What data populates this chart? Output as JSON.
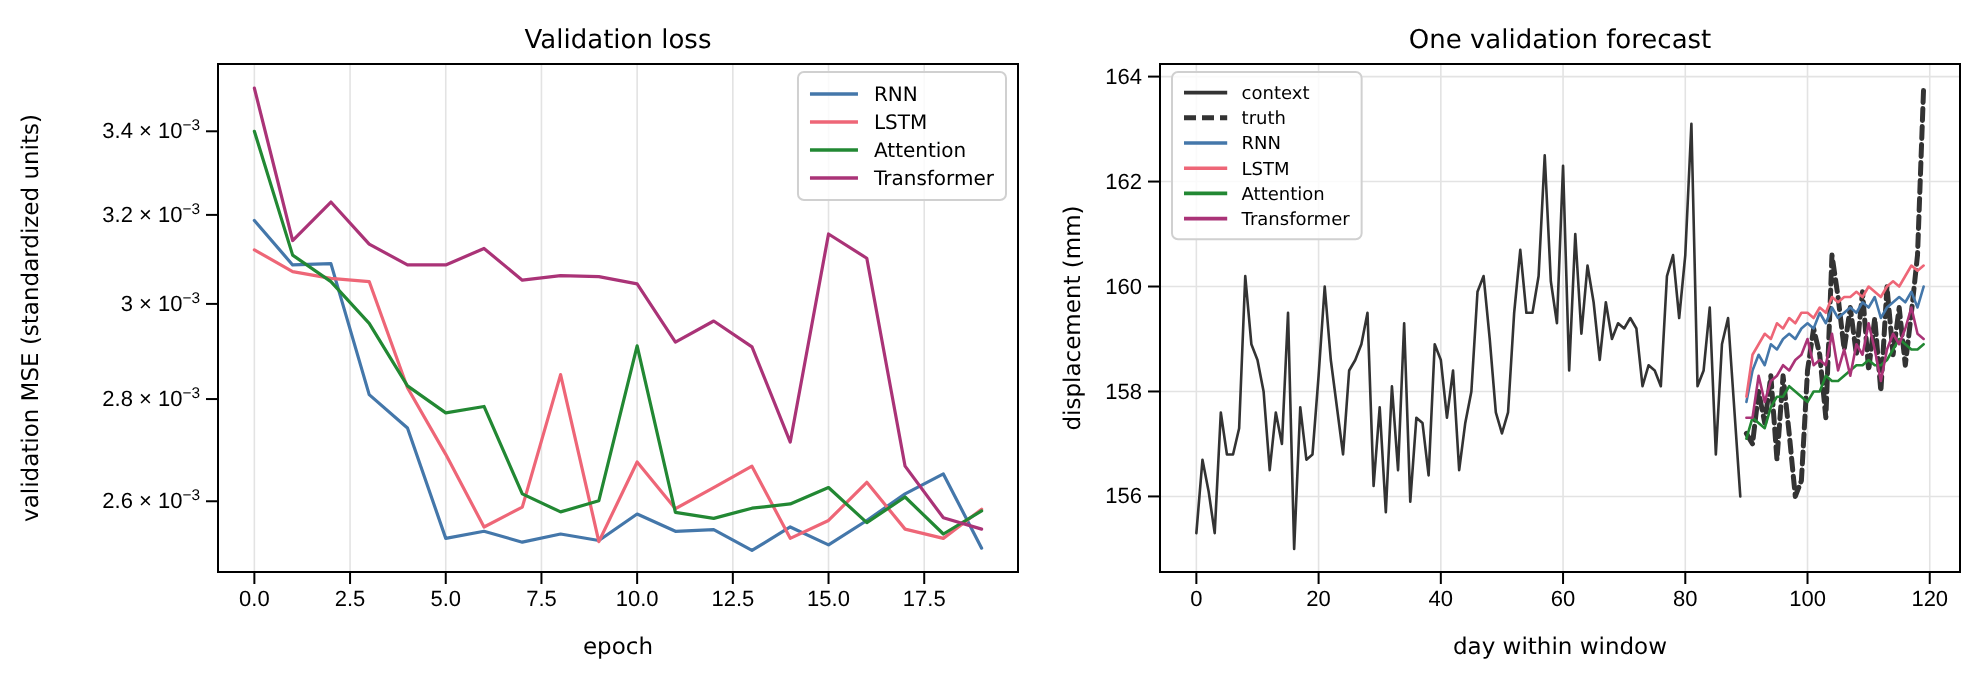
{
  "chart_data": [
    {
      "type": "line",
      "title": "Validation loss",
      "xlabel": "epoch",
      "ylabel": "validation MSE (standardized units)",
      "log": "y",
      "grid": "x",
      "legend": "top right",
      "marker": "none",
      "line_style": "solid",
      "xlim": [
        -0.95,
        19.95
      ],
      "xticks": [
        {
          "value": 0,
          "label": "0.0"
        },
        {
          "value": 2.5,
          "label": "2.5"
        },
        {
          "value": 5,
          "label": "5.0"
        },
        {
          "value": 7.5,
          "label": "7.5"
        },
        {
          "value": 10,
          "label": "10.0"
        },
        {
          "value": 12.5,
          "label": "12.5"
        },
        {
          "value": 15,
          "label": "15.0"
        },
        {
          "value": 17.5,
          "label": "17.5"
        }
      ],
      "ylim": [
        0.00247,
        0.00357
      ],
      "yticks": [
        {
          "value": 0.0026,
          "label": "2.6 × 10$^{−3}$"
        },
        {
          "value": 0.0028,
          "label": "2.8 × 10$^{−3}$"
        },
        {
          "value": 0.003,
          "label": "3 × 10$^{−3}$"
        },
        {
          "value": 0.0032,
          "label": "3.2 × 10$^{−3}$"
        },
        {
          "value": 0.0034,
          "label": "3.4 × 10$^{−3}$"
        }
      ],
      "x": [
        0,
        1,
        2,
        3,
        4,
        5,
        6,
        7,
        8,
        9,
        10,
        11,
        12,
        13,
        14,
        15,
        16,
        17,
        18,
        19
      ],
      "series": [
        {
          "name": "RNN",
          "color": "#4477aa",
          "values": [
            0.003187,
            0.003086,
            0.003089,
            0.002809,
            0.002742,
            0.002531,
            0.002544,
            0.002524,
            0.002539,
            0.002527,
            0.002576,
            0.002544,
            0.002547,
            0.002509,
            0.002552,
            0.002519,
            0.002564,
            0.002614,
            0.002652,
            0.002513
          ]
        },
        {
          "name": "LSTM",
          "color": "#ee6677",
          "values": [
            0.00312,
            0.003071,
            0.003056,
            0.003049,
            0.002823,
            0.00269,
            0.002552,
            0.002589,
            0.00285,
            0.002525,
            0.002675,
            0.002586,
            0.002626,
            0.002667,
            0.002531,
            0.002564,
            0.002636,
            0.002548,
            0.002531,
            0.002585
          ]
        },
        {
          "name": "Attention",
          "color": "#228833",
          "values": [
            0.0034,
            0.003108,
            0.003049,
            0.002958,
            0.002827,
            0.002772,
            0.002785,
            0.002614,
            0.00258,
            0.002601,
            0.00291,
            0.002579,
            0.002568,
            0.002587,
            0.002595,
            0.002626,
            0.00256,
            0.002608,
            0.002539,
            0.002582
          ]
        },
        {
          "name": "Transformer",
          "color": "#aa3377",
          "values": [
            0.003508,
            0.003141,
            0.00323,
            0.003133,
            0.003086,
            0.003086,
            0.003123,
            0.003052,
            0.003062,
            0.00306,
            0.003044,
            0.002918,
            0.002963,
            0.002908,
            0.002714,
            0.003156,
            0.003101,
            0.002667,
            0.002569,
            0.002548
          ]
        }
      ]
    },
    {
      "type": "line",
      "title": "One validation forecast",
      "xlabel": "day within window",
      "ylabel": "displacement (mm)",
      "grid": true,
      "legend": "top left",
      "marker": "none",
      "xlim": [
        -5.95,
        124.95
      ],
      "xticks": [
        0,
        20,
        40,
        60,
        80,
        100,
        120
      ],
      "ylim": [
        154.56,
        164.24
      ],
      "yticks": [
        156,
        158,
        160,
        162,
        164
      ],
      "series": [
        {
          "name": "context",
          "color": "#333333",
          "line_style": "solid",
          "x": [
            0,
            1,
            2,
            3,
            4,
            5,
            6,
            7,
            8,
            9,
            10,
            11,
            12,
            13,
            14,
            15,
            16,
            17,
            18,
            19,
            20,
            21,
            22,
            23,
            24,
            25,
            26,
            27,
            28,
            29,
            30,
            31,
            32,
            33,
            34,
            35,
            36,
            37,
            38,
            39,
            40,
            41,
            42,
            43,
            44,
            45,
            46,
            47,
            48,
            49,
            50,
            51,
            52,
            53,
            54,
            55,
            56,
            57,
            58,
            59,
            60,
            61,
            62,
            63,
            64,
            65,
            66,
            67,
            68,
            69,
            70,
            71,
            72,
            73,
            74,
            75,
            76,
            77,
            78,
            79,
            80,
            81,
            82,
            83,
            84,
            85,
            86,
            87,
            88,
            89
          ],
          "values": [
            155.3,
            156.7,
            156.1,
            155.3,
            157.6,
            156.8,
            156.8,
            157.3,
            160.2,
            158.9,
            158.6,
            158.0,
            156.5,
            157.6,
            157.0,
            159.5,
            155.0,
            157.7,
            156.7,
            156.8,
            158.3,
            160.0,
            158.6,
            157.7,
            156.8,
            158.4,
            158.6,
            158.9,
            159.5,
            156.2,
            157.7,
            155.7,
            158.1,
            156.5,
            159.3,
            155.9,
            157.5,
            157.4,
            156.4,
            158.9,
            158.6,
            157.5,
            158.4,
            156.5,
            157.4,
            158.0,
            159.9,
            160.2,
            159.0,
            157.6,
            157.2,
            157.6,
            159.5,
            160.7,
            159.5,
            159.5,
            160.2,
            162.5,
            160.1,
            159.3,
            162.3,
            158.4,
            161.0,
            159.1,
            160.4,
            159.7,
            158.6,
            159.7,
            159.0,
            159.3,
            159.2,
            159.4,
            159.2,
            158.1,
            158.5,
            158.4,
            158.1,
            160.2,
            160.6,
            159.4,
            160.6,
            163.1,
            158.1,
            158.4,
            159.6,
            156.8,
            158.9,
            159.4,
            157.7,
            156.0
          ]
        },
        {
          "name": "truth",
          "color": "#333333",
          "line_style": "dashed",
          "x": [
            90,
            91,
            92,
            93,
            94,
            95,
            96,
            97,
            98,
            99,
            100,
            101,
            102,
            103,
            104,
            105,
            106,
            107,
            108,
            109,
            110,
            111,
            112,
            113,
            114,
            115,
            116,
            117,
            118,
            119
          ],
          "values": [
            157.2,
            157.0,
            158.0,
            157.4,
            158.3,
            156.7,
            158.3,
            157.2,
            156.0,
            156.3,
            158.4,
            159.2,
            158.7,
            157.5,
            160.6,
            159.8,
            158.8,
            159.6,
            158.7,
            159.9,
            158.4,
            159.4,
            158.0,
            160.0,
            158.7,
            159.6,
            158.5,
            159.5,
            160.6,
            163.8
          ]
        },
        {
          "name": "RNN",
          "color": "#4477aa",
          "line_style": "solid",
          "x": [
            90,
            91,
            92,
            93,
            94,
            95,
            96,
            97,
            98,
            99,
            100,
            101,
            102,
            103,
            104,
            105,
            106,
            107,
            108,
            109,
            110,
            111,
            112,
            113,
            114,
            115,
            116,
            117,
            118,
            119
          ],
          "values": [
            157.8,
            158.4,
            158.7,
            158.5,
            158.9,
            158.8,
            159.0,
            159.1,
            159.0,
            159.2,
            159.3,
            159.2,
            159.5,
            159.3,
            159.6,
            159.4,
            159.5,
            159.6,
            159.5,
            159.7,
            159.6,
            159.8,
            159.4,
            159.6,
            159.7,
            159.8,
            159.7,
            159.9,
            159.6,
            160.0
          ]
        },
        {
          "name": "LSTM",
          "color": "#ee6677",
          "line_style": "solid",
          "x": [
            90,
            91,
            92,
            93,
            94,
            95,
            96,
            97,
            98,
            99,
            100,
            101,
            102,
            103,
            104,
            105,
            106,
            107,
            108,
            109,
            110,
            111,
            112,
            113,
            114,
            115,
            116,
            117,
            118,
            119
          ],
          "values": [
            157.9,
            158.7,
            158.9,
            159.1,
            159.0,
            159.3,
            159.2,
            159.4,
            159.3,
            159.5,
            159.5,
            159.4,
            159.6,
            159.5,
            159.8,
            159.7,
            159.8,
            159.8,
            159.9,
            159.8,
            160.0,
            159.9,
            159.8,
            160.0,
            160.1,
            160.0,
            160.2,
            160.4,
            160.3,
            160.4
          ]
        },
        {
          "name": "Attention",
          "color": "#228833",
          "line_style": "solid",
          "x": [
            90,
            91,
            92,
            93,
            94,
            95,
            96,
            97,
            98,
            99,
            100,
            101,
            102,
            103,
            104,
            105,
            106,
            107,
            108,
            109,
            110,
            111,
            112,
            113,
            114,
            115,
            116,
            117,
            118,
            119
          ],
          "values": [
            157.1,
            157.5,
            157.4,
            157.3,
            157.7,
            157.9,
            157.9,
            158.1,
            158.0,
            157.9,
            157.8,
            158.0,
            158.0,
            158.3,
            158.2,
            158.2,
            158.3,
            158.4,
            158.5,
            158.5,
            158.6,
            158.5,
            158.5,
            158.6,
            158.8,
            159.0,
            158.9,
            158.8,
            158.8,
            158.9
          ]
        },
        {
          "name": "Transformer",
          "color": "#aa3377",
          "line_style": "solid",
          "x": [
            90,
            91,
            92,
            93,
            94,
            95,
            96,
            97,
            98,
            99,
            100,
            101,
            102,
            103,
            104,
            105,
            106,
            107,
            108,
            109,
            110,
            111,
            112,
            113,
            114,
            115,
            116,
            117,
            118,
            119
          ],
          "values": [
            157.5,
            157.5,
            158.3,
            157.8,
            158.2,
            158.3,
            158.5,
            158.4,
            158.6,
            158.7,
            159.0,
            158.5,
            158.6,
            158.5,
            159.1,
            158.4,
            158.8,
            158.3,
            158.9,
            158.7,
            159.3,
            158.8,
            158.2,
            158.8,
            159.1,
            158.9,
            159.2,
            159.6,
            159.1,
            159.0
          ]
        }
      ]
    }
  ]
}
